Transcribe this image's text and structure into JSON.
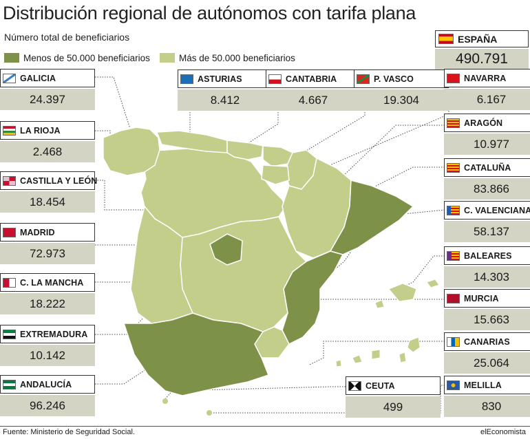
{
  "title": "Distribución regional de autónomos con tarifa plana",
  "subtitle": "Número total de beneficiarios",
  "legend": [
    {
      "label": "Menos de 50.000 beneficiarios",
      "color": "#7d9148"
    },
    {
      "label": "Más de 50.000 beneficiarios",
      "color": "#c2ce8a"
    }
  ],
  "colors": {
    "dark": "#7d9148",
    "light": "#c2ce8a",
    "value_bg": "#d4d4c4",
    "border": "#333333"
  },
  "spain": {
    "name": "ESPAÑA",
    "value": "490.791",
    "flag": "spain-flag-icon"
  },
  "regions": [
    {
      "key": "galicia",
      "name": "GALICIA",
      "value": "24.397",
      "flag": "galicia-flag-icon"
    },
    {
      "key": "asturias",
      "name": "ASTURIAS",
      "value": "8.412",
      "flag": "asturias-flag-icon"
    },
    {
      "key": "cantabria",
      "name": "CANTABRIA",
      "value": "4.667",
      "flag": "cantabria-flag-icon"
    },
    {
      "key": "pvasco",
      "name": "P. VASCO",
      "value": "19.304",
      "flag": "basque-flag-icon"
    },
    {
      "key": "navarra",
      "name": "NAVARRA",
      "value": "6.167",
      "flag": "navarra-flag-icon"
    },
    {
      "key": "larioja",
      "name": "LA RIOJA",
      "value": "2.468",
      "flag": "la-rioja-flag-icon"
    },
    {
      "key": "aragon",
      "name": "ARAGÓN",
      "value": "10.977",
      "flag": "aragon-flag-icon"
    },
    {
      "key": "castillaleon",
      "name": "CASTILLA Y LEÓN",
      "value": "18.454",
      "flag": "castilla-leon-flag-icon"
    },
    {
      "key": "cataluna",
      "name": "CATALUÑA",
      "value": "83.866",
      "flag": "cataluna-flag-icon"
    },
    {
      "key": "valenciana",
      "name": "C. VALENCIANA",
      "value": "58.137",
      "flag": "valencia-flag-icon"
    },
    {
      "key": "madrid",
      "name": "MADRID",
      "value": "72.973",
      "flag": "madrid-flag-icon"
    },
    {
      "key": "baleares",
      "name": "BALEARES",
      "value": "14.303",
      "flag": "baleares-flag-icon"
    },
    {
      "key": "lamancha",
      "name": "C. LA MANCHA",
      "value": "18.222",
      "flag": "castilla-la-mancha-flag-icon"
    },
    {
      "key": "murcia",
      "name": "MURCIA",
      "value": "15.663",
      "flag": "murcia-flag-icon"
    },
    {
      "key": "extremadura",
      "name": "EXTREMADURA",
      "value": "10.142",
      "flag": "extremadura-flag-icon"
    },
    {
      "key": "canarias",
      "name": "CANARIAS",
      "value": "25.064",
      "flag": "canarias-flag-icon"
    },
    {
      "key": "andalucia",
      "name": "ANDALUCÍA",
      "value": "96.246",
      "flag": "andalucia-flag-icon"
    },
    {
      "key": "ceuta",
      "name": "CEUTA",
      "value": "499",
      "flag": "ceuta-flag-icon"
    },
    {
      "key": "melilla",
      "name": "MELILLA",
      "value": "830",
      "flag": "melilla-flag-icon"
    }
  ],
  "footer": {
    "source": "Fuente: Ministerio de Seguridad Social.",
    "brand": "elEconomista"
  }
}
